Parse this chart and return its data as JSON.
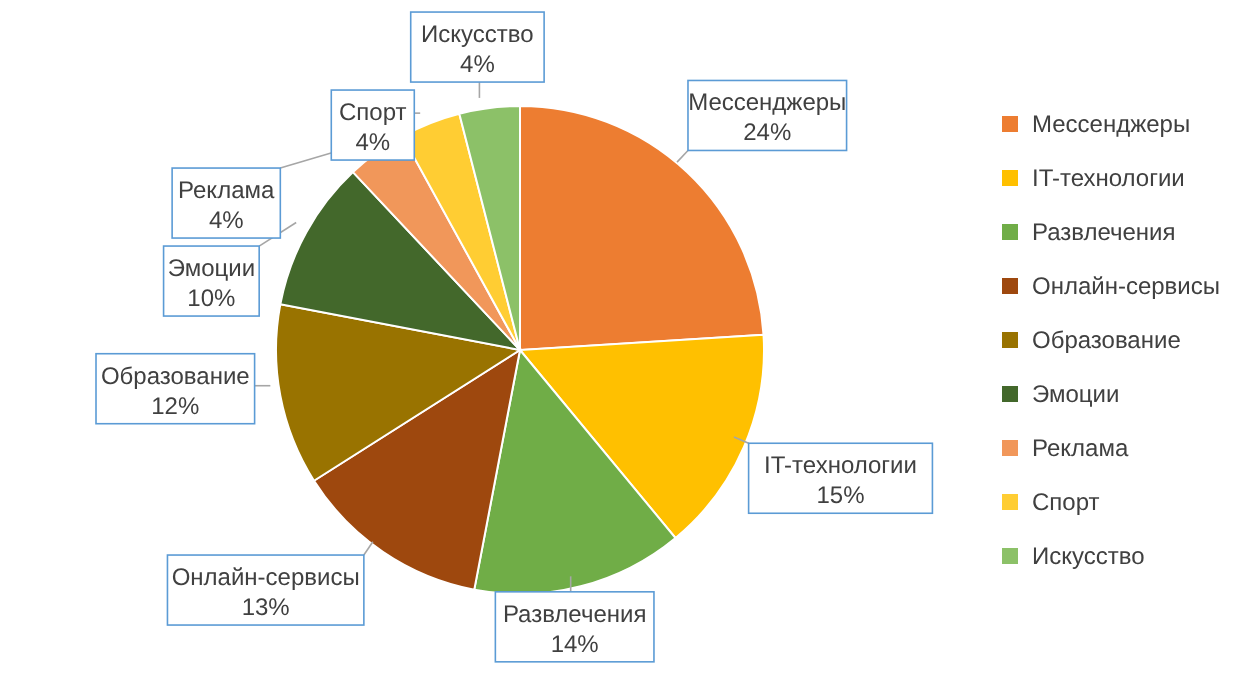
{
  "chart_data": {
    "type": "pie",
    "categories": [
      "Мессенджеры",
      "IT-технологии",
      "Развлечения",
      "Онлайн-сервисы",
      "Образование",
      "Эмоции",
      "Реклама",
      "Спорт",
      "Искусство"
    ],
    "values": [
      24,
      15,
      14,
      13,
      12,
      10,
      4,
      4,
      4
    ],
    "value_labels": [
      "24%",
      "15%",
      "14%",
      "13%",
      "12%",
      "10%",
      "4%",
      "4%",
      "4%"
    ],
    "colors": [
      "#ed7d31",
      "#ffc000",
      "#70ad47",
      "#9e480e",
      "#997300",
      "#43682b",
      "#f1975a",
      "#ffcd33",
      "#8cc168"
    ],
    "legend": "right"
  }
}
